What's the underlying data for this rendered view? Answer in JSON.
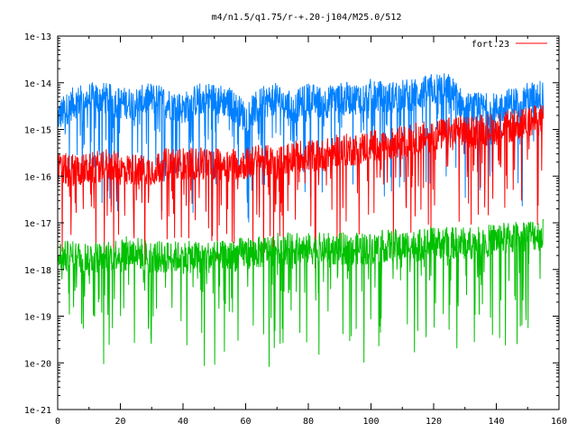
{
  "chart_data": {
    "type": "line",
    "title": "m4/n1.5/q1.75/r-+.20-j104/M25.0/512",
    "xlabel": "",
    "ylabel": "",
    "xlim": [
      0,
      160
    ],
    "ylim": [
      1e-21,
      1e-13
    ],
    "yscale": "log",
    "grid": false,
    "legend_position": "top-right",
    "x_ticks": [
      0,
      20,
      40,
      60,
      80,
      100,
      120,
      140,
      160
    ],
    "y_ticks": [
      1e-21,
      1e-20,
      1e-19,
      1e-18,
      1e-17,
      1e-16,
      1e-15,
      1e-14,
      1e-13
    ],
    "y_tick_labels": [
      "1e-21",
      "1e-20",
      "1e-19",
      "1e-18",
      "1e-17",
      "1e-16",
      "1e-15",
      "1e-14",
      "1e-13"
    ],
    "legend": [
      {
        "label": "fort.23",
        "color": "#ff0000"
      }
    ],
    "x_range_data": [
      0,
      155
    ],
    "series": [
      {
        "color": "#0080ff",
        "x": [
          0,
          5,
          10,
          15,
          20,
          25,
          30,
          35,
          40,
          45,
          50,
          55,
          60,
          65,
          70,
          75,
          80,
          85,
          90,
          95,
          100,
          105,
          110,
          115,
          120,
          125,
          130,
          135,
          140,
          145,
          150,
          155
        ],
        "y": [
          2e-15,
          4e-15,
          5e-15,
          5e-15,
          4e-15,
          4e-15,
          5e-15,
          4e-15,
          3e-15,
          5e-15,
          5e-15,
          4e-15,
          2e-15,
          4e-15,
          5e-15,
          3e-15,
          5e-15,
          4e-15,
          5e-15,
          5e-15,
          6e-15,
          5e-15,
          6e-15,
          6e-15,
          8e-15,
          8e-15,
          3e-15,
          3e-15,
          3e-15,
          4e-15,
          5e-15,
          6e-15
        ]
      },
      {
        "name": "fort.23",
        "color": "#ff0000",
        "x": [
          0,
          5,
          10,
          15,
          20,
          25,
          30,
          35,
          40,
          45,
          50,
          55,
          60,
          65,
          70,
          75,
          80,
          85,
          90,
          95,
          100,
          105,
          110,
          115,
          120,
          125,
          130,
          135,
          140,
          145,
          150,
          155
        ],
        "y": [
          1.5e-16,
          1.5e-16,
          1.5e-16,
          2e-16,
          1.5e-16,
          1.5e-16,
          1.5e-16,
          2e-16,
          2e-16,
          2e-16,
          2e-16,
          2e-16,
          2e-16,
          2.5e-16,
          2e-16,
          3e-16,
          3e-16,
          3e-16,
          4e-16,
          4e-16,
          5e-16,
          5e-16,
          6e-16,
          7e-16,
          8e-16,
          9e-16,
          1e-15,
          1.1e-15,
          1.1e-15,
          1.3e-15,
          1.5e-15,
          1.8e-15
        ]
      },
      {
        "color": "#00c000",
        "x": [
          0,
          5,
          10,
          15,
          20,
          25,
          30,
          35,
          40,
          45,
          50,
          55,
          60,
          65,
          70,
          75,
          80,
          85,
          90,
          95,
          100,
          105,
          110,
          115,
          120,
          125,
          130,
          135,
          140,
          145,
          150,
          155
        ],
        "y": [
          2e-18,
          2e-18,
          2e-18,
          2e-18,
          2.5e-18,
          2.5e-18,
          2e-18,
          2e-18,
          2e-18,
          2e-18,
          2e-18,
          2e-18,
          2.5e-18,
          2.5e-18,
          3e-18,
          3e-18,
          3e-18,
          3e-18,
          3e-18,
          3e-18,
          3e-18,
          3.5e-18,
          3.5e-18,
          3.5e-18,
          4e-18,
          4e-18,
          4e-18,
          4e-18,
          5e-18,
          5e-18,
          6e-18,
          6e-18
        ]
      }
    ]
  }
}
